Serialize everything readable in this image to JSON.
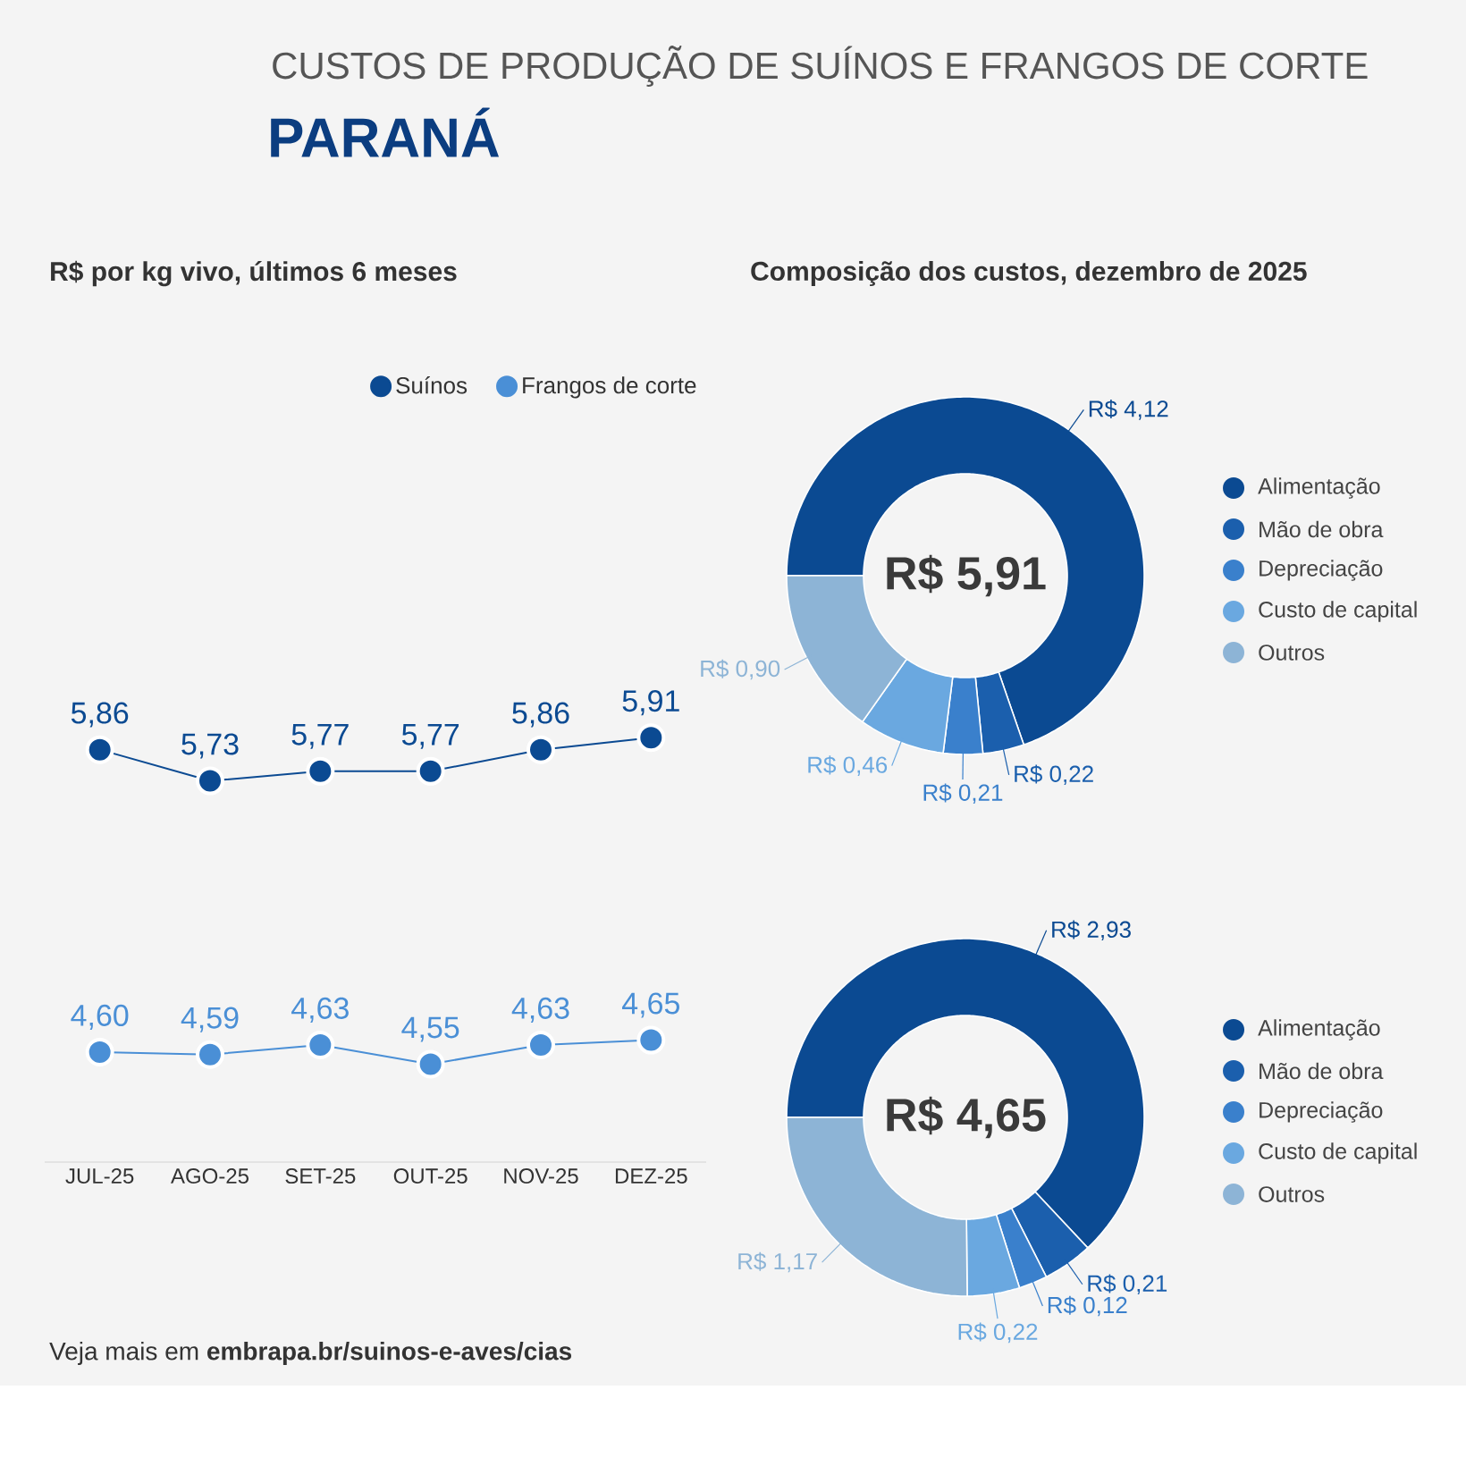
{
  "chart_data": [
    {
      "type": "other",
      "title": "CUSTOS DE PRODUÇÃO DE SUÍNOS E FRANGOS DE CORTE",
      "subtitle": "PARANÁ",
      "annotations": [
        "Veja mais em **embrapa.br/suinos-e-aves/cias**"
      ]
    },
    {
      "type": "line",
      "title": "R$ por kg vivo, últimos 6 meses",
      "categories": [
        "JUL-25",
        "AGO-25",
        "SET-25",
        "OUT-25",
        "NOV-25",
        "DEZ-25"
      ],
      "legend": "top right",
      "marker": "circle",
      "series": [
        {
          "name": "Suínos",
          "color": "#0b4a92",
          "values": [
            5.86,
            5.73,
            5.77,
            5.77,
            5.86,
            5.91
          ],
          "value_labels": [
            "5,86",
            "5,73",
            "5,77",
            "5,77",
            "5,86",
            "5,91"
          ]
        },
        {
          "name": "Frangos de corte",
          "color": "#4a8fd6",
          "values": [
            4.6,
            4.59,
            4.63,
            4.55,
            4.63,
            4.65
          ],
          "value_labels": [
            "4,60",
            "4,59",
            "4,63",
            "4,55",
            "4,63",
            "4,65"
          ]
        }
      ]
    },
    {
      "type": "donut",
      "title": "Composição dos custos, dezembro de 2025",
      "categories": [
        "Alimentação",
        "Mão de obra",
        "Depreciação",
        "Custo de capital",
        "Outros"
      ],
      "values": [
        4.12,
        0.22,
        0.21,
        0.46,
        0.9
      ],
      "value_labels": [
        "R$ 4,12",
        "R$ 0,22",
        "R$ 0,21",
        "R$ 0,46",
        "R$ 0,90"
      ],
      "colors": [
        "#0b4a92",
        "#1b5fad",
        "#3a80cc",
        "#6aa8e0",
        "#8db4d6"
      ],
      "legend": "right",
      "annotations": [
        "R$ 5,91"
      ]
    },
    {
      "type": "donut",
      "categories": [
        "Alimentação",
        "Mão de obra",
        "Depreciação",
        "Custo de capital",
        "Outros"
      ],
      "values": [
        2.93,
        0.21,
        0.12,
        0.22,
        1.17
      ],
      "value_labels": [
        "R$ 2,93",
        "R$ 0,21",
        "R$ 0,12",
        "R$ 0,22",
        "R$ 1,17"
      ],
      "colors": [
        "#0b4a92",
        "#1b5fad",
        "#3a80cc",
        "#6aa8e0",
        "#8db4d6"
      ],
      "legend": "right",
      "annotations": [
        "R$ 4,65"
      ]
    }
  ]
}
